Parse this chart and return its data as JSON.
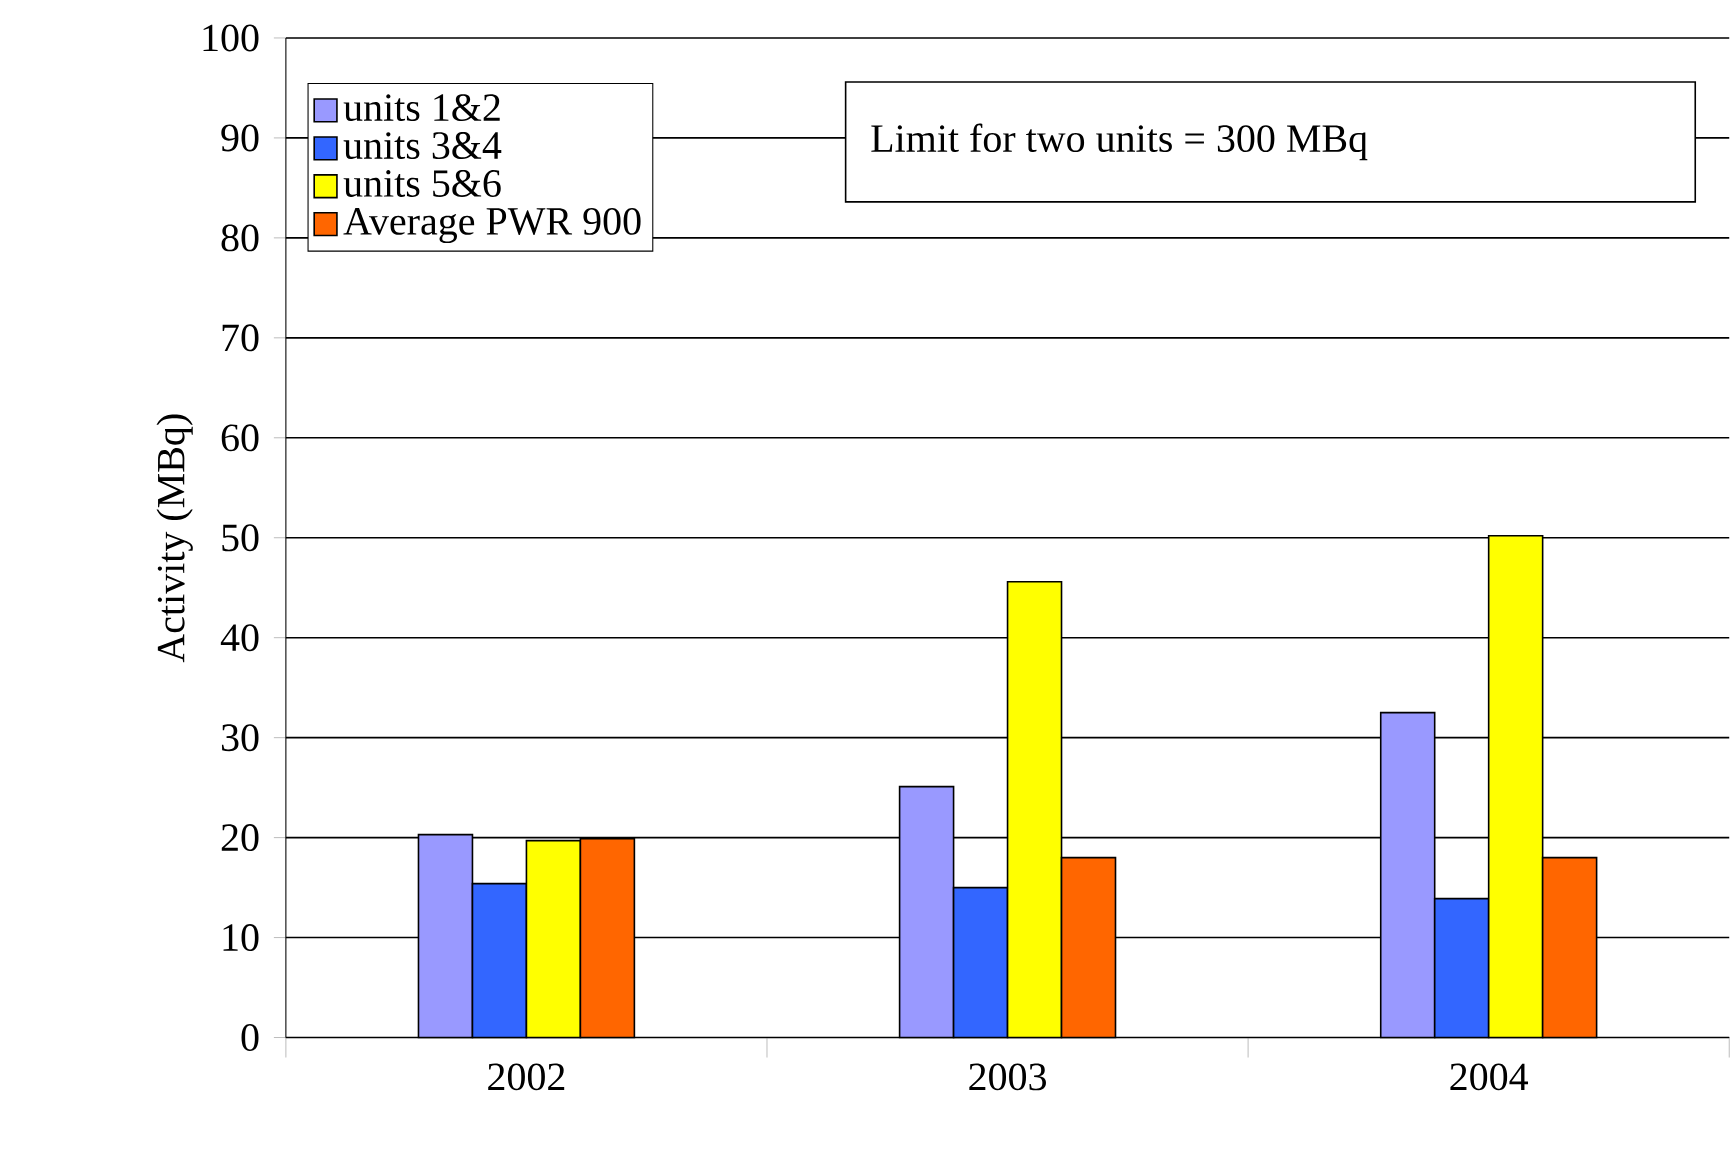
{
  "chart_data": {
    "type": "bar",
    "ylabel": "Activity (MBq)",
    "categories": [
      "2002",
      "2003",
      "2004"
    ],
    "series": [
      {
        "name": "units 1&2",
        "color": "#9999ff",
        "values": [
          20.3,
          25.1,
          32.5
        ]
      },
      {
        "name": "units 3&4",
        "color": "#3366ff",
        "values": [
          15.4,
          15.0,
          13.9
        ]
      },
      {
        "name": "units 5&6",
        "color": "#ffff00",
        "values": [
          19.7,
          45.6,
          50.2
        ]
      },
      {
        "name": "Average PWR 900",
        "color": "#ff6600",
        "values": [
          19.9,
          18.0,
          18.0
        ]
      }
    ],
    "ylim": [
      0,
      100
    ],
    "yticks": [
      0,
      10,
      20,
      30,
      40,
      50,
      60,
      70,
      80,
      90,
      100
    ],
    "grid": "y",
    "legend": "top left",
    "annotations": [
      "Limit for two units = 300 MBq"
    ]
  }
}
